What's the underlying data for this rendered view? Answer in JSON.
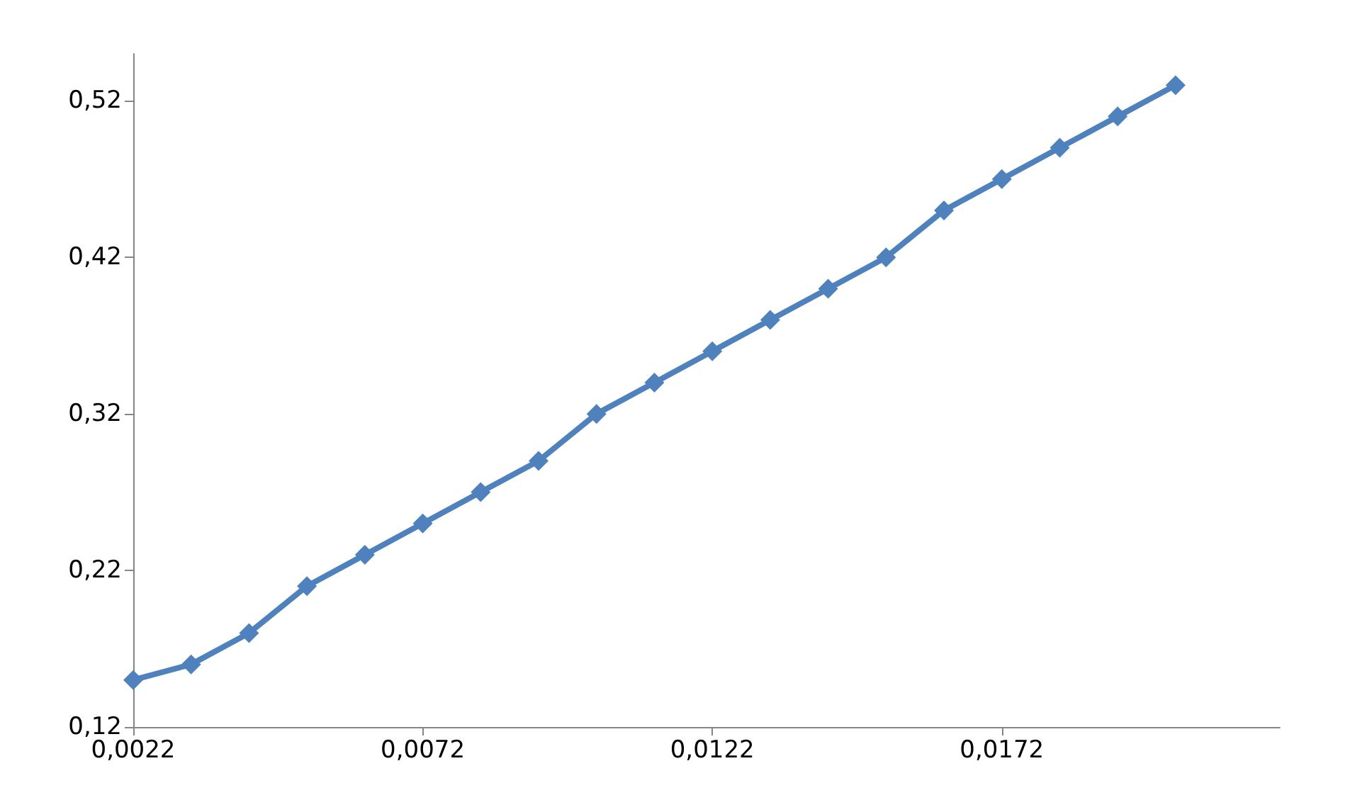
{
  "chart_data": {
    "type": "line",
    "x": [
      0.0022,
      0.0032,
      0.0042,
      0.0052,
      0.0062,
      0.0072,
      0.0082,
      0.0092,
      0.0102,
      0.0112,
      0.0122,
      0.0132,
      0.0142,
      0.0152,
      0.0162,
      0.0172,
      0.0182,
      0.0192,
      0.0202
    ],
    "series": [
      {
        "color": "#4f81bd",
        "values": [
          0.15,
          0.16,
          0.18,
          0.21,
          0.23,
          0.25,
          0.27,
          0.29,
          0.32,
          0.34,
          0.36,
          0.38,
          0.4,
          0.42,
          0.45,
          0.47,
          0.49,
          0.51,
          0.53
        ]
      }
    ],
    "xlim": [
      0.0022,
      0.022
    ],
    "xticks": [
      {
        "value": 0.0022,
        "label": "0,0022"
      },
      {
        "value": 0.0072,
        "label": "0,0072"
      },
      {
        "value": 0.0122,
        "label": "0,0122"
      },
      {
        "value": 0.0172,
        "label": "0,0172"
      }
    ],
    "ylim": [
      0.12,
      0.55
    ],
    "yticks": [
      {
        "value": 0.12,
        "label": "0,12"
      },
      {
        "value": 0.22,
        "label": "0,22"
      },
      {
        "value": 0.32,
        "label": "0,32"
      },
      {
        "value": 0.42,
        "label": "0,42"
      },
      {
        "value": 0.52,
        "label": "0,52"
      }
    ],
    "marker": "diamond",
    "line_style": "solid"
  }
}
